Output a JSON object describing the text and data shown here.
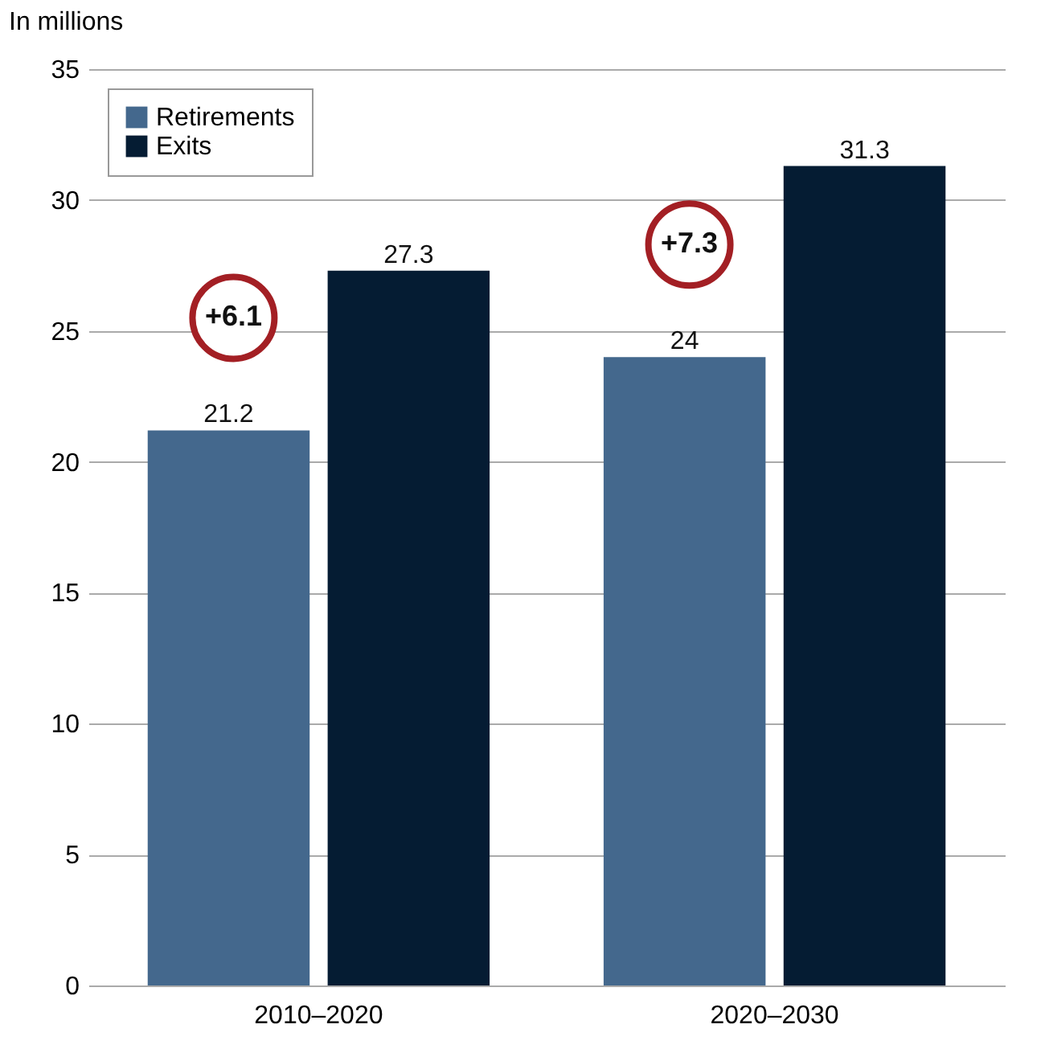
{
  "chart_data": {
    "type": "bar",
    "ylabel": "In millions",
    "categories": [
      "2010–2020",
      "2020–2030"
    ],
    "series": [
      {
        "name": "Retirements",
        "color": "#44688d",
        "values": [
          21.2,
          24
        ]
      },
      {
        "name": "Exits",
        "color": "#051c33",
        "values": [
          27.3,
          31.3
        ]
      }
    ],
    "ylim": [
      0,
      35
    ],
    "yticks": [
      0,
      5,
      10,
      15,
      20,
      25,
      30,
      35
    ],
    "grid": "y",
    "legend": "top left",
    "data_labels": true,
    "annotations": [
      "+6.1",
      "+7.3"
    ]
  }
}
